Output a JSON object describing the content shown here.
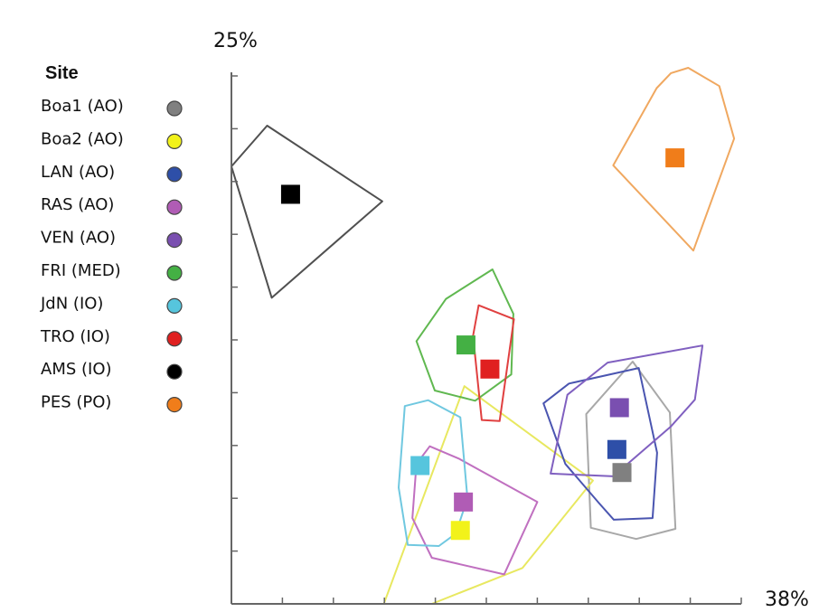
{
  "chart_data": {
    "type": "scatter",
    "y_corner_label": "25%",
    "x_corner_label": "38%",
    "legend": {
      "title": "Site",
      "placement": "left",
      "entries": [
        {
          "label": "Boa1 (AO)",
          "color": "#808080"
        },
        {
          "label": "Boa2 (AO)",
          "color": "#f2f21a"
        },
        {
          "label": "LAN (AO)",
          "color": "#2e4fa8"
        },
        {
          "label": "RAS (AO)",
          "color": "#b05cb5"
        },
        {
          "label": "VEN (AO)",
          "color": "#7a4fb0"
        },
        {
          "label": "FRI (MED)",
          "color": "#44b044"
        },
        {
          "label": "JdN (IO)",
          "color": "#56c5dd"
        },
        {
          "label": "TRO (IO)",
          "color": "#e02020"
        },
        {
          "label": "AMS (IO)",
          "color": "#000000"
        },
        {
          "label": "PES (PO)",
          "color": "#f07d1a"
        }
      ]
    },
    "grid": false,
    "series": [
      {
        "name": "Boa1 (AO)",
        "color": "#808080",
        "hull_color": "#a8a8a8",
        "centroid": [
          0.766,
          0.245
        ],
        "hull": [
          [
            0.787,
            0.452
          ],
          [
            0.696,
            0.354
          ],
          [
            0.705,
            0.142
          ],
          [
            0.794,
            0.121
          ],
          [
            0.871,
            0.14
          ],
          [
            0.86,
            0.357
          ]
        ]
      },
      {
        "name": "Boa2 (AO)",
        "color": "#f2f21a",
        "hull_color": "#e8e860",
        "centroid": [
          0.449,
          0.137
        ],
        "hull": [
          [
            0.457,
            0.406
          ],
          [
            0.709,
            0.23
          ],
          [
            0.571,
            0.067
          ],
          [
            0.393,
            0.0
          ],
          [
            0.299,
            0.0
          ]
        ]
      },
      {
        "name": "LAN (AO)",
        "color": "#2e4fa8",
        "hull_color": "#4a55b0",
        "centroid": [
          0.756,
          0.288
        ],
        "hull": [
          [
            0.662,
            0.411
          ],
          [
            0.799,
            0.44
          ],
          [
            0.835,
            0.282
          ],
          [
            0.826,
            0.16
          ],
          [
            0.75,
            0.157
          ],
          [
            0.721,
            0.188
          ],
          [
            0.655,
            0.261
          ],
          [
            0.612,
            0.374
          ]
        ]
      },
      {
        "name": "RAS (AO)",
        "color": "#b05cb5",
        "hull_color": "#c070c0",
        "centroid": [
          0.455,
          0.19
        ],
        "hull": [
          [
            0.389,
            0.294
          ],
          [
            0.446,
            0.271
          ],
          [
            0.6,
            0.19
          ],
          [
            0.535,
            0.055
          ],
          [
            0.393,
            0.086
          ],
          [
            0.355,
            0.16
          ],
          [
            0.363,
            0.261
          ]
        ]
      },
      {
        "name": "VEN (AO)",
        "color": "#7a4fb0",
        "hull_color": "#8060c0",
        "centroid": [
          0.761,
          0.366
        ],
        "hull": [
          [
            0.924,
            0.482
          ],
          [
            0.738,
            0.45
          ],
          [
            0.659,
            0.39
          ],
          [
            0.626,
            0.243
          ],
          [
            0.749,
            0.238
          ],
          [
            0.862,
            0.331
          ],
          [
            0.909,
            0.381
          ]
        ]
      },
      {
        "name": "FRI (MED)",
        "color": "#44b044",
        "hull_color": "#60b850",
        "centroid": [
          0.46,
          0.483
        ],
        "hull": [
          [
            0.363,
            0.49
          ],
          [
            0.421,
            0.569
          ],
          [
            0.512,
            0.624
          ],
          [
            0.553,
            0.541
          ],
          [
            0.549,
            0.428
          ],
          [
            0.478,
            0.379
          ],
          [
            0.399,
            0.398
          ]
        ]
      },
      {
        "name": "JdN (IO)",
        "color": "#56c5dd",
        "hull_color": "#70c8e0",
        "centroid": [
          0.37,
          0.258
        ],
        "hull": [
          [
            0.34,
            0.369
          ],
          [
            0.386,
            0.38
          ],
          [
            0.449,
            0.348
          ],
          [
            0.463,
            0.197
          ],
          [
            0.44,
            0.131
          ],
          [
            0.407,
            0.108
          ],
          [
            0.346,
            0.11
          ],
          [
            0.328,
            0.217
          ]
        ]
      },
      {
        "name": "TRO (IO)",
        "color": "#e02020",
        "hull_color": "#e04040",
        "centroid": [
          0.507,
          0.438
        ],
        "hull": [
          [
            0.485,
            0.557
          ],
          [
            0.554,
            0.531
          ],
          [
            0.526,
            0.341
          ],
          [
            0.491,
            0.343
          ],
          [
            0.474,
            0.5
          ]
        ]
      },
      {
        "name": "AMS (IO)",
        "color": "#000000",
        "hull_color": "#505050",
        "centroid": [
          0.116,
          0.764
        ],
        "hull": [
          [
            0.0,
            0.816
          ],
          [
            0.07,
            0.892
          ],
          [
            0.296,
            0.751
          ],
          [
            0.079,
            0.571
          ]
        ]
      },
      {
        "name": "PES (PO)",
        "color": "#f07d1a",
        "hull_color": "#f0a860",
        "centroid": [
          0.87,
          0.832
        ],
        "hull": [
          [
            0.862,
            0.99
          ],
          [
            0.896,
            1.0
          ],
          [
            0.957,
            0.966
          ],
          [
            0.986,
            0.868
          ],
          [
            0.906,
            0.659
          ],
          [
            0.749,
            0.818
          ],
          [
            0.834,
            0.962
          ]
        ]
      }
    ]
  }
}
